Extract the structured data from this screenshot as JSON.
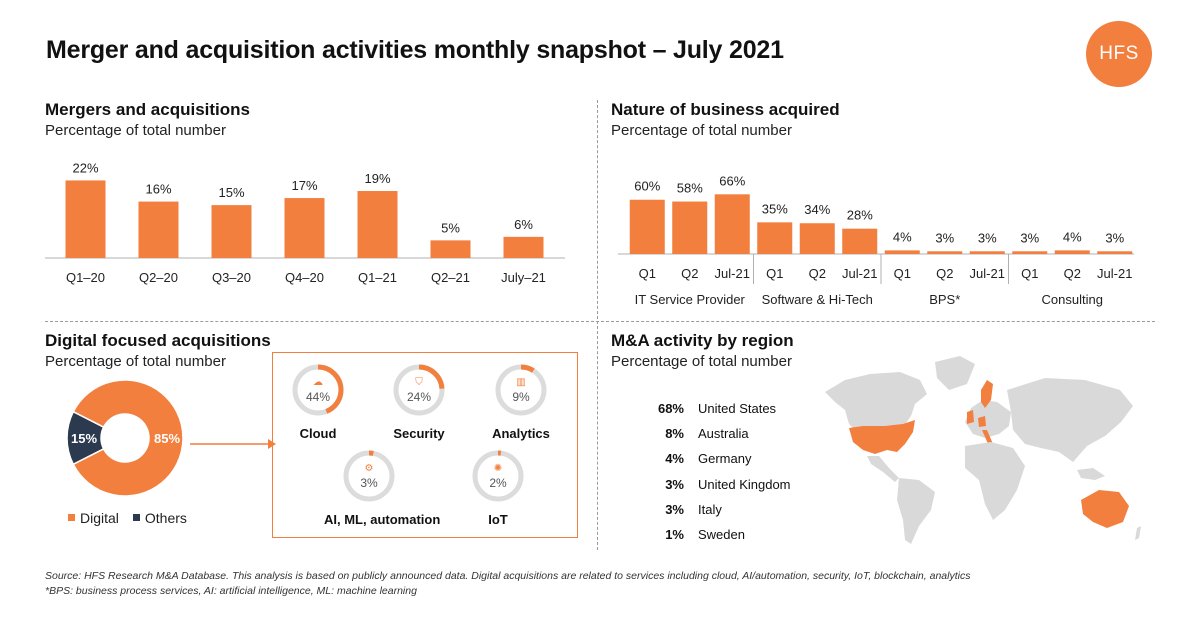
{
  "page": {
    "title": "Merger and acquisition activities monthly snapshot – July 2021",
    "logo": "HFS"
  },
  "sections": {
    "ma": {
      "title": "Mergers and acquisitions",
      "subtitle": "Percentage of total number"
    },
    "nature": {
      "title": "Nature of business acquired",
      "subtitle": "Percentage of total number"
    },
    "digital": {
      "title": "Digital focused acquisitions",
      "subtitle": "Percentage of total number"
    },
    "region": {
      "title": "M&A activity by region",
      "subtitle": "Percentage of total number"
    }
  },
  "colors": {
    "accent": "#f27f3d",
    "dark": "#2b3a4f",
    "ring_bg": "#dcdcdc",
    "axis": "#b0b0b0",
    "map_land": "#d9d9d9"
  },
  "chart_data": [
    {
      "type": "bar",
      "id": "ma_quarterly",
      "categories": [
        "Q1–20",
        "Q2–20",
        "Q3–20",
        "Q4–20",
        "Q1–21",
        "Q2–21",
        "July–21"
      ],
      "values": [
        22,
        16,
        15,
        17,
        19,
        5,
        6
      ],
      "value_labels": [
        "22%",
        "16%",
        "15%",
        "17%",
        "19%",
        "5%",
        "6%"
      ],
      "ylim": [
        0,
        25
      ]
    },
    {
      "type": "bar",
      "id": "nature_business",
      "groups": [
        {
          "name": "IT Service Provider",
          "categories": [
            "Q1",
            "Q2",
            "Jul-21"
          ],
          "values": [
            60,
            58,
            66
          ],
          "value_labels": [
            "60%",
            "58%",
            "66%"
          ]
        },
        {
          "name": "Software & Hi-Tech",
          "categories": [
            "Q1",
            "Q2",
            "Jul-21"
          ],
          "values": [
            35,
            34,
            28
          ],
          "value_labels": [
            "35%",
            "34%",
            "28%"
          ]
        },
        {
          "name": "BPS*",
          "categories": [
            "Q1",
            "Q2",
            "Jul-21"
          ],
          "values": [
            4,
            3,
            3
          ],
          "value_labels": [
            "4%",
            "3%",
            "3%"
          ]
        },
        {
          "name": "Consulting",
          "categories": [
            "Q1",
            "Q2",
            "Jul-21"
          ],
          "values": [
            3,
            4,
            3
          ],
          "value_labels": [
            "3%",
            "4%",
            "3%"
          ]
        }
      ],
      "ylim": [
        0,
        75
      ]
    },
    {
      "type": "pie",
      "id": "digital_share",
      "donut": true,
      "slices": [
        {
          "name": "Digital",
          "value": 85,
          "label": "85%"
        },
        {
          "name": "Others",
          "value": 15,
          "label": "15%"
        }
      ],
      "legend": [
        "Digital",
        "Others"
      ]
    },
    {
      "type": "pie",
      "id": "digital_breakdown",
      "donut": true,
      "items": [
        {
          "name": "Cloud",
          "value": 44,
          "label": "44%",
          "icon": "cloud-icon"
        },
        {
          "name": "Security",
          "value": 24,
          "label": "24%",
          "icon": "shield-icon"
        },
        {
          "name": "Analytics",
          "value": 9,
          "label": "9%",
          "icon": "bar-chart-icon"
        },
        {
          "name": "AI, ML, automation",
          "value": 3,
          "label": "3%",
          "icon": "robot-icon"
        },
        {
          "name": "IoT",
          "value": 2,
          "label": "2%",
          "icon": "network-icon"
        }
      ]
    },
    {
      "type": "table",
      "id": "region_activity",
      "rows": [
        {
          "pct": "68%",
          "region": "United States"
        },
        {
          "pct": "8%",
          "region": "Australia"
        },
        {
          "pct": "4%",
          "region": "Germany"
        },
        {
          "pct": "3%",
          "region": "United Kingdom"
        },
        {
          "pct": "3%",
          "region": "Italy"
        },
        {
          "pct": "1%",
          "region": "Sweden"
        }
      ],
      "highlighted_regions": [
        "United States",
        "Australia",
        "Germany",
        "United Kingdom",
        "Italy",
        "Sweden"
      ]
    }
  ],
  "footer": {
    "line1": "Source: HFS Research M&A Database. This analysis is based on publicly announced data. Digital acquisitions are related to services including cloud, AI/automation, security, IoT, blockchain, analytics",
    "line2": "*BPS: business process services,  AI: artificial intelligence, ML: machine learning"
  }
}
